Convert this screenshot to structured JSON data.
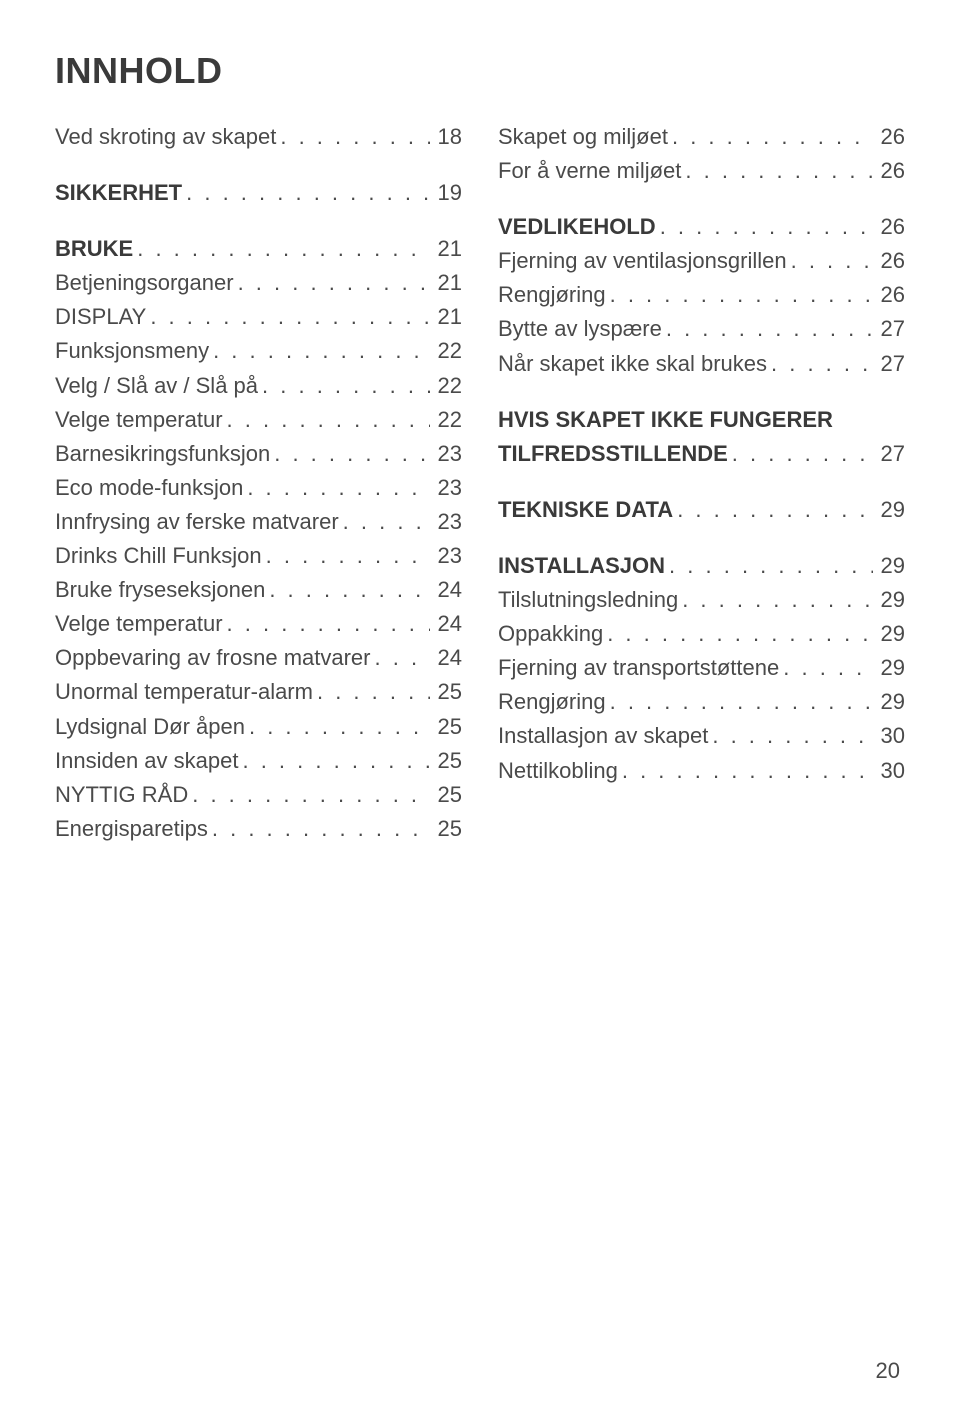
{
  "title": "INNHOLD",
  "page_number": "20",
  "columns": [
    {
      "groups": [
        {
          "entries": [
            {
              "label": "Ved skroting av skapet",
              "page": "18",
              "bold": false
            }
          ]
        },
        {
          "entries": [
            {
              "label": "SIKKERHET",
              "page": "19",
              "bold": true
            }
          ]
        },
        {
          "entries": [
            {
              "label": "BRUKE",
              "page": "21",
              "bold": true
            },
            {
              "label": "Betjeningsorganer",
              "page": "21",
              "bold": false
            },
            {
              "label": "DISPLAY",
              "page": "21",
              "bold": false
            },
            {
              "label": "Funksjonsmeny",
              "page": "22",
              "bold": false
            },
            {
              "label": "Velg / Slå av / Slå på",
              "page": "22",
              "bold": false
            },
            {
              "label": "Velge temperatur",
              "page": "22",
              "bold": false
            },
            {
              "label": "Barnesikringsfunksjon",
              "page": "23",
              "bold": false
            },
            {
              "label": "Eco mode-funksjon",
              "page": "23",
              "bold": false
            },
            {
              "label": "Innfrysing av ferske matvarer",
              "page": "23",
              "bold": false
            },
            {
              "label": "Drinks Chill Funksjon",
              "page": "23",
              "bold": false
            },
            {
              "label": "Bruke fryseseksjonen",
              "page": "24",
              "bold": false
            },
            {
              "label": "Velge temperatur",
              "page": "24",
              "bold": false
            },
            {
              "label": "Oppbevaring av frosne matvarer",
              "page": "24",
              "bold": false
            },
            {
              "label": "Unormal temperatur-alarm",
              "page": "25",
              "bold": false
            },
            {
              "label": "Lydsignal Dør åpen",
              "page": "25",
              "bold": false
            },
            {
              "label": "Innsiden av skapet",
              "page": "25",
              "bold": false
            },
            {
              "label": "NYTTIG RÅD",
              "page": "25",
              "bold": false
            },
            {
              "label": "Energisparetips",
              "page": "25",
              "bold": false
            }
          ]
        }
      ]
    },
    {
      "groups": [
        {
          "entries": [
            {
              "label": "Skapet og miljøet",
              "page": "26",
              "bold": false
            },
            {
              "label": "For å verne miljøet",
              "page": "26",
              "bold": false
            }
          ]
        },
        {
          "entries": [
            {
              "label": "VEDLIKEHOLD",
              "page": "26",
              "bold": true
            },
            {
              "label": "Fjerning av ventilasjonsgrillen",
              "page": "26",
              "bold": false
            },
            {
              "label": "Rengjøring",
              "page": "26",
              "bold": false
            },
            {
              "label": "Bytte av lyspære",
              "page": "27",
              "bold": false
            },
            {
              "label": "Når skapet ikke skal brukes",
              "page": "27",
              "bold": false
            }
          ]
        },
        {
          "entries": [
            {
              "label": "HVIS SKAPET IKKE FUNGERER TILFREDSSTILLENDE",
              "page": "27",
              "bold": true,
              "wrap": true
            }
          ]
        },
        {
          "entries": [
            {
              "label": "TEKNISKE DATA",
              "page": "29",
              "bold": true
            }
          ]
        },
        {
          "entries": [
            {
              "label": "INSTALLASJON",
              "page": "29",
              "bold": true
            },
            {
              "label": "Tilslutningsledning",
              "page": "29",
              "bold": false
            },
            {
              "label": "Oppakking",
              "page": "29",
              "bold": false
            },
            {
              "label": "Fjerning av transportstøttene",
              "page": "29",
              "bold": false
            },
            {
              "label": "Rengjøring",
              "page": "29",
              "bold": false
            },
            {
              "label": "Installasjon av skapet",
              "page": "30",
              "bold": false
            },
            {
              "label": "Nettilkobling",
              "page": "30",
              "bold": false
            }
          ]
        }
      ]
    }
  ]
}
